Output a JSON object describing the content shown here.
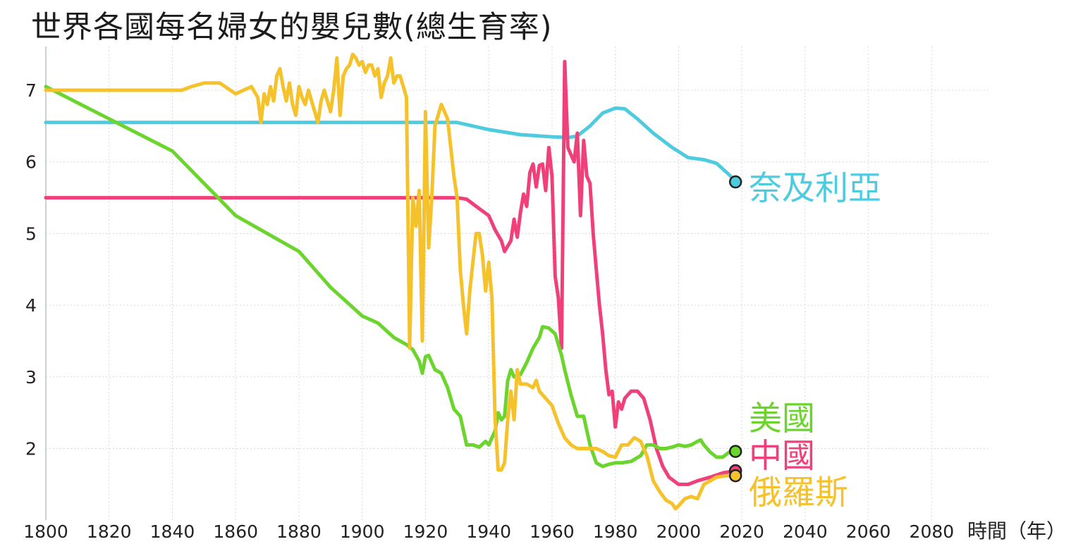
{
  "chart_data": {
    "type": "line",
    "title": "世界各國每名婦女的嬰兒數(總生育率)",
    "xlabel": "時間（年）",
    "ylabel": "",
    "xlim": [
      1800,
      2100
    ],
    "ylim": [
      1.1,
      7.6
    ],
    "x_ticks": [
      "1800",
      "1820",
      "1840",
      "1860",
      "1880",
      "1900",
      "1920",
      "1940",
      "1960",
      "1980",
      "2000",
      "2020",
      "2040",
      "2060",
      "2080"
    ],
    "y_ticks": [
      "2",
      "3",
      "4",
      "5",
      "6",
      "7"
    ],
    "grid": true,
    "series": [
      {
        "name": "奈及利亞",
        "color": "#4fcbe0",
        "points": [
          [
            1800,
            6.55
          ],
          [
            1930,
            6.55
          ],
          [
            1940,
            6.45
          ],
          [
            1950,
            6.38
          ],
          [
            1960,
            6.35
          ],
          [
            1965,
            6.34
          ],
          [
            1968,
            6.36
          ],
          [
            1972,
            6.5
          ],
          [
            1976,
            6.68
          ],
          [
            1980,
            6.75
          ],
          [
            1983,
            6.74
          ],
          [
            1987,
            6.6
          ],
          [
            1992,
            6.4
          ],
          [
            1998,
            6.2
          ],
          [
            2003,
            6.06
          ],
          [
            2008,
            6.03
          ],
          [
            2012,
            5.98
          ],
          [
            2016,
            5.82
          ],
          [
            2018,
            5.72
          ]
        ]
      },
      {
        "name": "中國",
        "color": "#f0407a",
        "points": [
          [
            1800,
            5.5
          ],
          [
            1930,
            5.5
          ],
          [
            1933,
            5.48
          ],
          [
            1936,
            5.38
          ],
          [
            1940,
            5.25
          ],
          [
            1942,
            5.05
          ],
          [
            1944,
            4.9
          ],
          [
            1945,
            4.75
          ],
          [
            1947,
            4.9
          ],
          [
            1948,
            5.2
          ],
          [
            1949,
            4.95
          ],
          [
            1950,
            5.29
          ],
          [
            1951,
            5.55
          ],
          [
            1952,
            5.38
          ],
          [
            1953,
            5.85
          ],
          [
            1954,
            5.97
          ],
          [
            1955,
            5.65
          ],
          [
            1956,
            5.95
          ],
          [
            1957,
            5.97
          ],
          [
            1958,
            5.6
          ],
          [
            1959,
            6.2
          ],
          [
            1960,
            5.8
          ],
          [
            1961,
            4.4
          ],
          [
            1962,
            4.1
          ],
          [
            1963,
            3.4
          ],
          [
            1964,
            7.4
          ],
          [
            1965,
            6.2
          ],
          [
            1966,
            6.1
          ],
          [
            1967,
            6.0
          ],
          [
            1968,
            6.4
          ],
          [
            1969,
            5.25
          ],
          [
            1970,
            6.3
          ],
          [
            1971,
            5.8
          ],
          [
            1972,
            5.7
          ],
          [
            1973,
            5.0
          ],
          [
            1974,
            4.5
          ],
          [
            1975,
            4.0
          ],
          [
            1976,
            3.6
          ],
          [
            1977,
            3.1
          ],
          [
            1978,
            2.75
          ],
          [
            1979,
            2.8
          ],
          [
            1980,
            2.3
          ],
          [
            1981,
            2.65
          ],
          [
            1982,
            2.55
          ],
          [
            1983,
            2.7
          ],
          [
            1985,
            2.8
          ],
          [
            1987,
            2.8
          ],
          [
            1989,
            2.7
          ],
          [
            1991,
            2.4
          ],
          [
            1993,
            2.0
          ],
          [
            1995,
            1.75
          ],
          [
            1997,
            1.6
          ],
          [
            2000,
            1.5
          ],
          [
            2003,
            1.5
          ],
          [
            2006,
            1.55
          ],
          [
            2010,
            1.6
          ],
          [
            2014,
            1.66
          ],
          [
            2018,
            1.69
          ]
        ]
      },
      {
        "name": "美國",
        "color": "#6cd52d",
        "points": [
          [
            1800,
            7.05
          ],
          [
            1840,
            6.15
          ],
          [
            1860,
            5.25
          ],
          [
            1880,
            4.75
          ],
          [
            1890,
            4.25
          ],
          [
            1900,
            3.85
          ],
          [
            1905,
            3.75
          ],
          [
            1910,
            3.55
          ],
          [
            1912,
            3.5
          ],
          [
            1914,
            3.45
          ],
          [
            1916,
            3.38
          ],
          [
            1918,
            3.22
          ],
          [
            1919,
            3.05
          ],
          [
            1920,
            3.28
          ],
          [
            1921,
            3.3
          ],
          [
            1923,
            3.1
          ],
          [
            1925,
            3.05
          ],
          [
            1927,
            2.85
          ],
          [
            1929,
            2.55
          ],
          [
            1931,
            2.45
          ],
          [
            1932,
            2.25
          ],
          [
            1933,
            2.05
          ],
          [
            1935,
            2.05
          ],
          [
            1937,
            2.02
          ],
          [
            1939,
            2.1
          ],
          [
            1940,
            2.05
          ],
          [
            1942,
            2.25
          ],
          [
            1943,
            2.5
          ],
          [
            1944,
            2.4
          ],
          [
            1945,
            2.45
          ],
          [
            1946,
            2.95
          ],
          [
            1947,
            3.1
          ],
          [
            1948,
            3.0
          ],
          [
            1950,
            3.03
          ],
          [
            1952,
            3.2
          ],
          [
            1954,
            3.4
          ],
          [
            1956,
            3.55
          ],
          [
            1957,
            3.7
          ],
          [
            1959,
            3.68
          ],
          [
            1961,
            3.6
          ],
          [
            1963,
            3.3
          ],
          [
            1964,
            3.1
          ],
          [
            1966,
            2.75
          ],
          [
            1968,
            2.45
          ],
          [
            1970,
            2.45
          ],
          [
            1972,
            2.05
          ],
          [
            1974,
            1.8
          ],
          [
            1976,
            1.75
          ],
          [
            1978,
            1.78
          ],
          [
            1980,
            1.8
          ],
          [
            1982,
            1.8
          ],
          [
            1985,
            1.82
          ],
          [
            1988,
            1.9
          ],
          [
            1990,
            2.05
          ],
          [
            1992,
            2.05
          ],
          [
            1994,
            2.0
          ],
          [
            1996,
            2.0
          ],
          [
            1998,
            2.02
          ],
          [
            2000,
            2.05
          ],
          [
            2002,
            2.03
          ],
          [
            2004,
            2.05
          ],
          [
            2006,
            2.1
          ],
          [
            2007,
            2.12
          ],
          [
            2008,
            2.05
          ],
          [
            2010,
            1.95
          ],
          [
            2012,
            1.88
          ],
          [
            2014,
            1.88
          ],
          [
            2016,
            1.95
          ],
          [
            2018,
            1.96
          ]
        ]
      },
      {
        "name": "俄羅斯",
        "color": "#f5c22b",
        "points": [
          [
            1800,
            7.0
          ],
          [
            1843,
            7.0
          ],
          [
            1846,
            7.05
          ],
          [
            1850,
            7.1
          ],
          [
            1855,
            7.1
          ],
          [
            1860,
            6.95
          ],
          [
            1865,
            7.05
          ],
          [
            1867,
            6.9
          ],
          [
            1868,
            6.55
          ],
          [
            1869,
            6.95
          ],
          [
            1870,
            6.8
          ],
          [
            1871,
            7.05
          ],
          [
            1872,
            6.85
          ],
          [
            1873,
            7.2
          ],
          [
            1874,
            7.3
          ],
          [
            1875,
            7.05
          ],
          [
            1876,
            6.85
          ],
          [
            1877,
            7.1
          ],
          [
            1878,
            6.8
          ],
          [
            1879,
            6.65
          ],
          [
            1880,
            7.05
          ],
          [
            1881,
            6.9
          ],
          [
            1882,
            6.8
          ],
          [
            1883,
            7.0
          ],
          [
            1884,
            6.85
          ],
          [
            1885,
            6.7
          ],
          [
            1886,
            6.55
          ],
          [
            1887,
            6.85
          ],
          [
            1888,
            7.0
          ],
          [
            1889,
            6.85
          ],
          [
            1890,
            6.7
          ],
          [
            1891,
            7.0
          ],
          [
            1892,
            7.45
          ],
          [
            1893,
            6.65
          ],
          [
            1894,
            7.2
          ],
          [
            1895,
            7.3
          ],
          [
            1896,
            7.35
          ],
          [
            1897,
            7.5
          ],
          [
            1898,
            7.45
          ],
          [
            1899,
            7.35
          ],
          [
            1900,
            7.4
          ],
          [
            1901,
            7.25
          ],
          [
            1902,
            7.35
          ],
          [
            1903,
            7.35
          ],
          [
            1904,
            7.2
          ],
          [
            1905,
            7.3
          ],
          [
            1906,
            6.9
          ],
          [
            1907,
            7.1
          ],
          [
            1908,
            7.2
          ],
          [
            1909,
            7.45
          ],
          [
            1910,
            7.1
          ],
          [
            1911,
            7.2
          ],
          [
            1912,
            7.2
          ],
          [
            1913,
            7.05
          ],
          [
            1914,
            6.9
          ],
          [
            1915,
            3.4
          ],
          [
            1916,
            5.5
          ],
          [
            1917,
            5.1
          ],
          [
            1918,
            5.6
          ],
          [
            1919,
            3.5
          ],
          [
            1920,
            6.7
          ],
          [
            1921,
            4.8
          ],
          [
            1922,
            5.5
          ],
          [
            1923,
            6.5
          ],
          [
            1925,
            6.8
          ],
          [
            1927,
            6.6
          ],
          [
            1929,
            5.8
          ],
          [
            1930,
            5.5
          ],
          [
            1931,
            4.5
          ],
          [
            1932,
            4.0
          ],
          [
            1933,
            3.6
          ],
          [
            1934,
            4.2
          ],
          [
            1935,
            4.6
          ],
          [
            1936,
            5.0
          ],
          [
            1937,
            5.0
          ],
          [
            1938,
            4.7
          ],
          [
            1939,
            4.2
          ],
          [
            1940,
            4.6
          ],
          [
            1941,
            4.1
          ],
          [
            1942,
            2.4
          ],
          [
            1943,
            1.7
          ],
          [
            1944,
            1.7
          ],
          [
            1945,
            1.8
          ],
          [
            1946,
            2.4
          ],
          [
            1947,
            2.8
          ],
          [
            1948,
            2.4
          ],
          [
            1949,
            3.1
          ],
          [
            1950,
            2.9
          ],
          [
            1952,
            2.9
          ],
          [
            1954,
            2.85
          ],
          [
            1955,
            2.95
          ],
          [
            1956,
            2.8
          ],
          [
            1958,
            2.7
          ],
          [
            1960,
            2.6
          ],
          [
            1962,
            2.35
          ],
          [
            1964,
            2.15
          ],
          [
            1966,
            2.05
          ],
          [
            1968,
            2.0
          ],
          [
            1970,
            2.0
          ],
          [
            1972,
            2.0
          ],
          [
            1974,
            2.0
          ],
          [
            1976,
            1.96
          ],
          [
            1978,
            1.9
          ],
          [
            1980,
            1.88
          ],
          [
            1982,
            2.05
          ],
          [
            1984,
            2.05
          ],
          [
            1986,
            2.15
          ],
          [
            1988,
            2.1
          ],
          [
            1990,
            1.9
          ],
          [
            1992,
            1.55
          ],
          [
            1994,
            1.4
          ],
          [
            1996,
            1.28
          ],
          [
            1998,
            1.23
          ],
          [
            1999,
            1.16
          ],
          [
            2000,
            1.2
          ],
          [
            2002,
            1.3
          ],
          [
            2004,
            1.33
          ],
          [
            2006,
            1.3
          ],
          [
            2008,
            1.5
          ],
          [
            2010,
            1.55
          ],
          [
            2012,
            1.6
          ],
          [
            2015,
            1.62
          ],
          [
            2018,
            1.62
          ]
        ]
      }
    ]
  }
}
